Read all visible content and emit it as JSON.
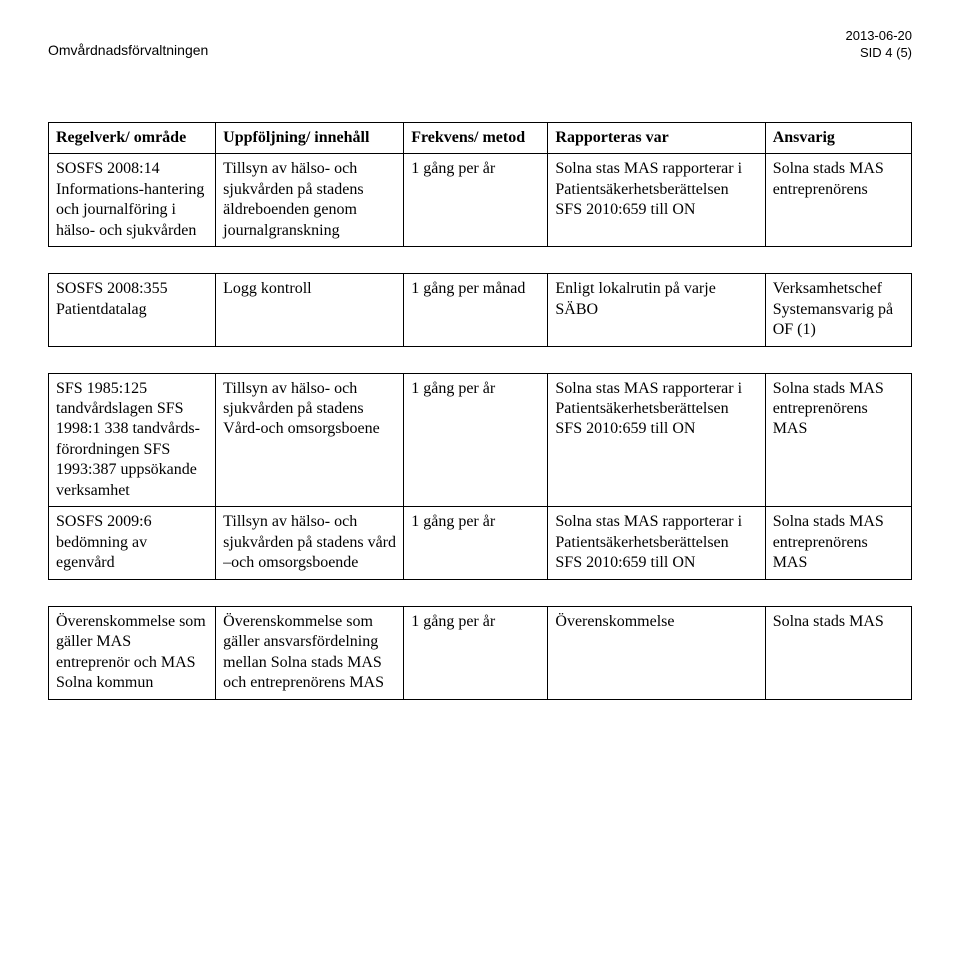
{
  "header": {
    "org": "Omvårdnadsförvaltningen",
    "date": "2013-06-20",
    "page": "SID 4 (5)"
  },
  "columns": {
    "c1": "Regelverk/ område",
    "c2": "Uppföljning/ innehåll",
    "c3": "Frekvens/ metod",
    "c4": "Rapporteras var",
    "c5": "Ansvarig"
  },
  "t1": {
    "r1": {
      "c1": "SOSFS 2008:14 Informations-hantering och journalföring i hälso- och sjukvården",
      "c2": "Tillsyn av hälso- och sjukvården på stadens äldreboenden genom journalgranskning",
      "c3": "1 gång per år",
      "c4": "Solna stas MAS rapporterar i Patientsäkerhetsberättelsen SFS 2010:659 till ON",
      "c5": "Solna stads MAS entreprenörens"
    }
  },
  "t2": {
    "r1": {
      "c1": "SOSFS 2008:355 Patientdatalag",
      "c2": "Logg kontroll",
      "c3": "1 gång per månad",
      "c4": "Enligt lokalrutin på varje SÄBO",
      "c5": "Verksamhetschef Systemansvarig på OF (1)"
    }
  },
  "t3": {
    "r1": {
      "c1": "SFS 1985:125 tandvårdslagen SFS 1998:1 338 tandvårds-förordningen SFS 1993:387 uppsökande verksamhet",
      "c2": "Tillsyn av hälso- och sjukvården på stadens Vård-och omsorgsboene",
      "c3": "1 gång per år",
      "c4": "Solna stas MAS rapporterar i Patientsäkerhetsberättelsen SFS 2010:659 till ON",
      "c5": "Solna stads MAS entreprenörens MAS"
    },
    "r2": {
      "c1": "SOSFS 2009:6 bedömning av egenvård",
      "c2": "Tillsyn av hälso- och sjukvården på stadens vård –och omsorgsboende",
      "c3": "1 gång per år",
      "c4": "Solna stas MAS rapporterar i Patientsäkerhetsberättelsen SFS 2010:659 till ON",
      "c5": "Solna stads MAS entreprenörens MAS"
    }
  },
  "t4": {
    "r1": {
      "c1": "Överenskommelse som gäller MAS entreprenör och MAS Solna kommun",
      "c2": "Överenskommelse som gäller ansvarsfördelning mellan Solna stads MAS och entreprenörens MAS",
      "c3": "1 gång per år",
      "c4": "Överenskommelse",
      "c5": "Solna stads MAS"
    }
  }
}
